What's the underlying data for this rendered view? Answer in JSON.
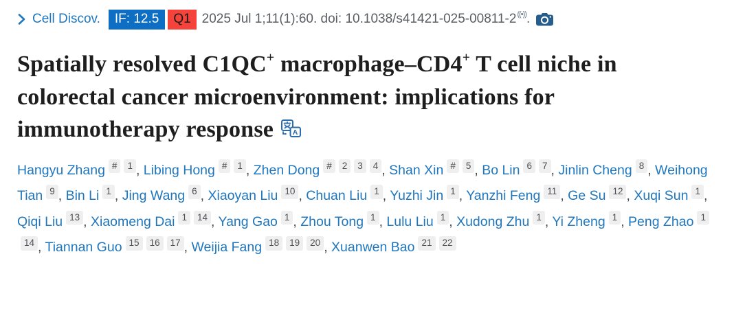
{
  "cite": {
    "journal": "Cell Discov.",
    "impact_factor_label": "IF: 12.5",
    "quartile_label": "Q1",
    "citation_text": "2025 Jul 1;11(1):60. doi: 10.1038/s41421-025-00811-2",
    "signal_mark": "((•))",
    "period": ".",
    "colors": {
      "impact_factor_bg": "#0e6ec4",
      "quartile_bg": "#f4433a",
      "link_blue": "#2077bd",
      "citation_gray": "#5a5e63",
      "camera_icon_blue": "#265d8d",
      "translate_icon_blue": "#2b6cb0"
    }
  },
  "title": {
    "segments": [
      {
        "text": "Spatially resolved C1QC"
      },
      {
        "text": "+",
        "sup": true
      },
      {
        "text": " macrophage–CD4"
      },
      {
        "text": "+",
        "sup": true
      },
      {
        "text": " T cell niche in colorectal cancer microenvironment: implications for immunotherapy response"
      }
    ]
  },
  "authors": [
    {
      "name": "Hangyu Zhang",
      "sups": [
        "#",
        "1"
      ]
    },
    {
      "name": "Libing Hong",
      "sups": [
        "#",
        "1"
      ]
    },
    {
      "name": "Zhen Dong",
      "sups": [
        "#",
        "2",
        "3",
        "4"
      ]
    },
    {
      "name": "Shan Xin",
      "sups": [
        "#",
        "5"
      ]
    },
    {
      "name": "Bo Lin",
      "sups": [
        "6",
        "7"
      ]
    },
    {
      "name": "Jinlin Cheng",
      "sups": [
        "8"
      ]
    },
    {
      "name": "Weihong Tian",
      "sups": [
        "9"
      ]
    },
    {
      "name": "Bin Li",
      "sups": [
        "1"
      ]
    },
    {
      "name": "Jing Wang",
      "sups": [
        "6"
      ]
    },
    {
      "name": "Xiaoyan Liu",
      "sups": [
        "10"
      ]
    },
    {
      "name": "Chuan Liu",
      "sups": [
        "1"
      ]
    },
    {
      "name": "Yuzhi Jin",
      "sups": [
        "1"
      ]
    },
    {
      "name": "Yanzhi Feng",
      "sups": [
        "11"
      ]
    },
    {
      "name": "Ge Su",
      "sups": [
        "12"
      ]
    },
    {
      "name": "Xuqi Sun",
      "sups": [
        "1"
      ]
    },
    {
      "name": "Qiqi Liu",
      "sups": [
        "13"
      ]
    },
    {
      "name": "Xiaomeng Dai",
      "sups": [
        "1",
        "14"
      ]
    },
    {
      "name": "Yang Gao",
      "sups": [
        "1"
      ]
    },
    {
      "name": "Zhou Tong",
      "sups": [
        "1"
      ]
    },
    {
      "name": "Lulu Liu",
      "sups": [
        "1"
      ]
    },
    {
      "name": "Xudong Zhu",
      "sups": [
        "1"
      ]
    },
    {
      "name": "Yi Zheng",
      "sups": [
        "1"
      ]
    },
    {
      "name": "Peng Zhao",
      "sups": [
        "1",
        "14"
      ]
    },
    {
      "name": "Tiannan Guo",
      "sups": [
        "15",
        "16",
        "17"
      ]
    },
    {
      "name": "Weijia Fang",
      "sups": [
        "18",
        "19",
        "20"
      ]
    },
    {
      "name": "Xuanwen Bao",
      "sups": [
        "21",
        "22"
      ]
    }
  ]
}
